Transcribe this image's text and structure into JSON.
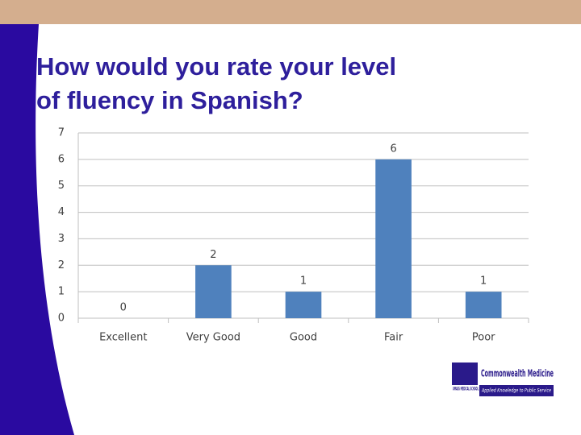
{
  "chart_data": {
    "type": "bar",
    "title": "How would you rate your level of fluency in Spanish?",
    "categories": [
      "Excellent",
      "Very Good",
      "Good",
      "Fair",
      "Poor"
    ],
    "values": [
      0,
      2,
      1,
      6,
      1
    ],
    "color": "#4f81bd",
    "ylim": [
      0,
      7
    ],
    "yticks": [
      0,
      1,
      2,
      3,
      4,
      5,
      6,
      7
    ],
    "grid": true
  },
  "logo": {
    "name": "Commonwealth Medicine",
    "school": "UMASS MEDICAL SCHOOL",
    "tagline": "Applied Knowledge to Public Service"
  }
}
